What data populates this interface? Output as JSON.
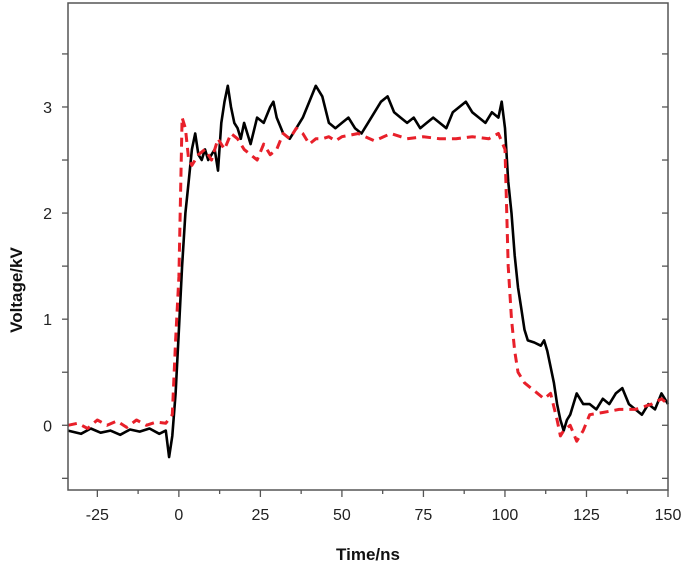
{
  "chart_data": {
    "type": "line",
    "title": "",
    "xlabel": "Time/ns",
    "ylabel": "Voltage/kV",
    "xlim": [
      -34,
      150
    ],
    "ylim": [
      -0.61,
      3.98
    ],
    "xticks": [
      -25,
      0,
      25,
      50,
      75,
      100,
      125,
      150
    ],
    "yticks": [
      0,
      1,
      2,
      3
    ],
    "grid": false,
    "legend": "none",
    "series": [
      {
        "style": "solid",
        "color": "#000000",
        "x": [
          -34,
          -30,
          -27,
          -24,
          -21,
          -18,
          -15,
          -12,
          -9,
          -6,
          -4,
          -3,
          -2,
          -1,
          0,
          1,
          2,
          3,
          4,
          5,
          6,
          7,
          8,
          9,
          10,
          11,
          12,
          13,
          14,
          15,
          16,
          17,
          18,
          19,
          20,
          22,
          24,
          26,
          28,
          29,
          30,
          32,
          34,
          36,
          38,
          40,
          42,
          44,
          46,
          48,
          50,
          52,
          54,
          56,
          58,
          60,
          62,
          64,
          66,
          68,
          70,
          72,
          74,
          76,
          78,
          80,
          82,
          84,
          86,
          88,
          90,
          92,
          94,
          96,
          98,
          99,
          100,
          101,
          102,
          103,
          104,
          105,
          106,
          107,
          109,
          111,
          112,
          113,
          114,
          115,
          116,
          117,
          118,
          119,
          120,
          122,
          124,
          126,
          128,
          130,
          132,
          134,
          136,
          138,
          140,
          142,
          144,
          146,
          148,
          150
        ],
        "y": [
          -0.05,
          -0.08,
          -0.03,
          -0.07,
          -0.05,
          -0.09,
          -0.04,
          -0.06,
          -0.03,
          -0.08,
          -0.05,
          -0.3,
          -0.1,
          0.3,
          0.9,
          1.5,
          2.0,
          2.3,
          2.6,
          2.75,
          2.55,
          2.5,
          2.6,
          2.5,
          2.55,
          2.6,
          2.4,
          2.85,
          3.05,
          3.2,
          3.0,
          2.85,
          2.8,
          2.7,
          2.85,
          2.65,
          2.9,
          2.85,
          3.0,
          3.05,
          2.9,
          2.75,
          2.7,
          2.8,
          2.9,
          3.05,
          3.2,
          3.1,
          2.85,
          2.8,
          2.85,
          2.9,
          2.8,
          2.75,
          2.85,
          2.95,
          3.05,
          3.1,
          2.95,
          2.9,
          2.85,
          2.9,
          2.8,
          2.85,
          2.9,
          2.85,
          2.8,
          2.95,
          3.0,
          3.05,
          2.95,
          2.9,
          2.85,
          2.95,
          2.9,
          3.05,
          2.8,
          2.3,
          2.0,
          1.6,
          1.3,
          1.1,
          0.9,
          0.8,
          0.78,
          0.75,
          0.8,
          0.7,
          0.55,
          0.4,
          0.2,
          0.05,
          -0.05,
          0.05,
          0.1,
          0.3,
          0.2,
          0.2,
          0.15,
          0.25,
          0.2,
          0.3,
          0.35,
          0.2,
          0.15,
          0.1,
          0.2,
          0.15,
          0.3,
          0.2
        ]
      },
      {
        "style": "dashed",
        "color": "#e8202a",
        "x": [
          -34,
          -31,
          -28,
          -25,
          -22,
          -19,
          -16,
          -13,
          -10,
          -7,
          -4,
          -2,
          -1,
          0,
          1,
          2,
          3,
          4,
          6,
          8,
          10,
          12,
          14,
          16,
          18,
          20,
          22,
          24,
          26,
          28,
          30,
          32,
          34,
          36,
          38,
          40,
          42,
          44,
          46,
          48,
          50,
          55,
          60,
          65,
          70,
          75,
          80,
          85,
          90,
          95,
          98,
          100,
          101,
          102,
          103,
          104,
          106,
          108,
          110,
          112,
          114,
          116,
          117,
          118,
          120,
          122,
          124,
          126,
          130,
          135,
          140,
          145,
          148,
          150
        ],
        "y": [
          0,
          0.02,
          -0.03,
          0.05,
          0,
          0.04,
          -0.02,
          0.05,
          0,
          0.03,
          0.02,
          0.1,
          0.8,
          1.4,
          2.9,
          2.8,
          2.5,
          2.45,
          2.55,
          2.6,
          2.5,
          2.7,
          2.6,
          2.75,
          2.7,
          2.6,
          2.55,
          2.5,
          2.65,
          2.55,
          2.6,
          2.75,
          2.7,
          2.8,
          2.75,
          2.65,
          2.7,
          2.7,
          2.72,
          2.68,
          2.72,
          2.75,
          2.68,
          2.75,
          2.7,
          2.72,
          2.7,
          2.7,
          2.72,
          2.7,
          2.75,
          2.6,
          1.5,
          1.0,
          0.7,
          0.5,
          0.4,
          0.35,
          0.3,
          0.25,
          0.3,
          0.05,
          -0.1,
          -0.05,
          0.0,
          -0.15,
          -0.05,
          0.1,
          0.12,
          0.15,
          0.15,
          0.2,
          0.25,
          0.2
        ]
      }
    ]
  }
}
